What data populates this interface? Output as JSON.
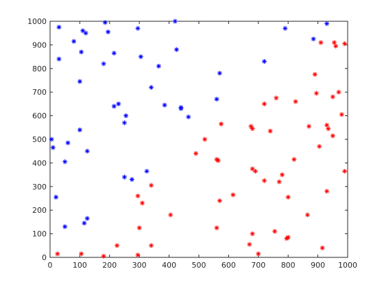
{
  "chart_data": {
    "type": "scatter",
    "title": "",
    "xlabel": "",
    "ylabel": "",
    "xlim": [
      0,
      1000
    ],
    "ylim": [
      0,
      1000
    ],
    "xticks": [
      0,
      100,
      200,
      300,
      400,
      500,
      600,
      700,
      800,
      900,
      1000
    ],
    "yticks": [
      0,
      100,
      200,
      300,
      400,
      500,
      600,
      700,
      800,
      900,
      1000
    ],
    "grid": false,
    "marker": "asterisk",
    "series": [
      {
        "color": "#0000ff",
        "points": [
          [
            30,
            975
          ],
          [
            185,
            995
          ],
          [
            195,
            955
          ],
          [
            110,
            960
          ],
          [
            120,
            950
          ],
          [
            295,
            970
          ],
          [
            420,
            1000
          ],
          [
            80,
            915
          ],
          [
            30,
            840
          ],
          [
            105,
            870
          ],
          [
            215,
            865
          ],
          [
            305,
            850
          ],
          [
            425,
            880
          ],
          [
            180,
            820
          ],
          [
            365,
            810
          ],
          [
            570,
            780
          ],
          [
            885,
            925
          ],
          [
            790,
            970
          ],
          [
            930,
            990
          ],
          [
            720,
            830
          ],
          [
            100,
            745
          ],
          [
            340,
            720
          ],
          [
            560,
            670
          ],
          [
            230,
            650
          ],
          [
            215,
            640
          ],
          [
            385,
            645
          ],
          [
            440,
            635
          ],
          [
            440,
            630
          ],
          [
            465,
            595
          ],
          [
            255,
            600
          ],
          [
            250,
            570
          ],
          [
            5,
            500
          ],
          [
            10,
            465
          ],
          [
            100,
            540
          ],
          [
            60,
            485
          ],
          [
            125,
            450
          ],
          [
            50,
            405
          ],
          [
            20,
            255
          ],
          [
            250,
            340
          ],
          [
            275,
            330
          ],
          [
            325,
            365
          ],
          [
            50,
            130
          ],
          [
            115,
            145
          ],
          [
            125,
            165
          ]
        ]
      },
      {
        "color": "#ff0000",
        "points": [
          [
            910,
            910
          ],
          [
            955,
            910
          ],
          [
            960,
            895
          ],
          [
            990,
            905
          ],
          [
            890,
            775
          ],
          [
            895,
            695
          ],
          [
            950,
            680
          ],
          [
            970,
            700
          ],
          [
            825,
            660
          ],
          [
            760,
            675
          ],
          [
            720,
            650
          ],
          [
            575,
            565
          ],
          [
            675,
            555
          ],
          [
            680,
            545
          ],
          [
            740,
            535
          ],
          [
            870,
            555
          ],
          [
            930,
            560
          ],
          [
            935,
            545
          ],
          [
            950,
            515
          ],
          [
            980,
            605
          ],
          [
            905,
            470
          ],
          [
            520,
            500
          ],
          [
            490,
            440
          ],
          [
            565,
            410
          ],
          [
            560,
            415
          ],
          [
            820,
            415
          ],
          [
            680,
            375
          ],
          [
            690,
            365
          ],
          [
            780,
            350
          ],
          [
            720,
            325
          ],
          [
            770,
            320
          ],
          [
            990,
            365
          ],
          [
            340,
            305
          ],
          [
            295,
            260
          ],
          [
            310,
            230
          ],
          [
            570,
            240
          ],
          [
            615,
            265
          ],
          [
            800,
            255
          ],
          [
            930,
            280
          ],
          [
            405,
            180
          ],
          [
            865,
            180
          ],
          [
            300,
            125
          ],
          [
            560,
            125
          ],
          [
            755,
            110
          ],
          [
            680,
            100
          ],
          [
            795,
            80
          ],
          [
            800,
            85
          ],
          [
            670,
            55
          ],
          [
            340,
            50
          ],
          [
            225,
            50
          ],
          [
            915,
            40
          ],
          [
            25,
            15
          ],
          [
            105,
            15
          ],
          [
            180,
            5
          ],
          [
            295,
            10
          ],
          [
            700,
            15
          ]
        ]
      }
    ]
  }
}
